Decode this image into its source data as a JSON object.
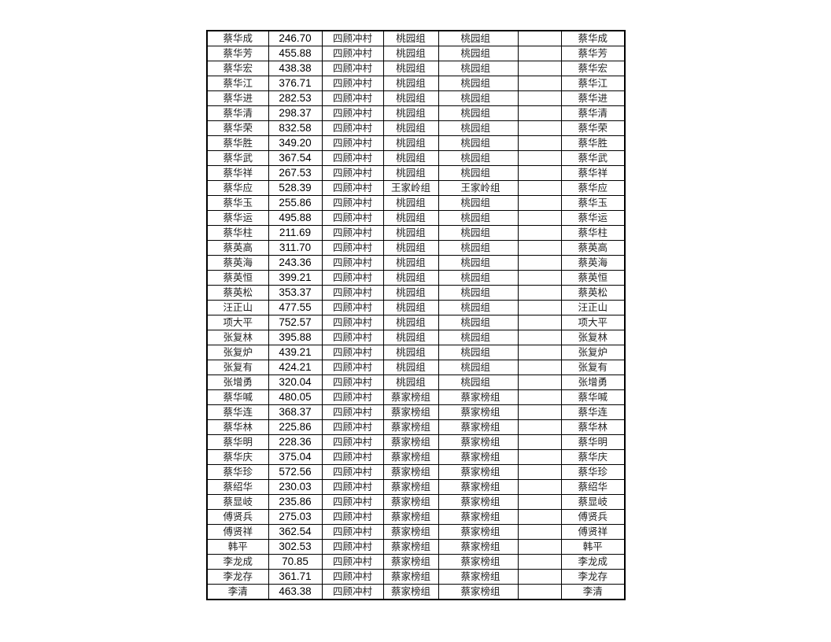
{
  "rows": [
    [
      "蔡华成",
      "246.70",
      "四顾冲村",
      "桃园组",
      "桃园组",
      "",
      "蔡华成"
    ],
    [
      "蔡华芳",
      "455.88",
      "四顾冲村",
      "桃园组",
      "桃园组",
      "",
      "蔡华芳"
    ],
    [
      "蔡华宏",
      "438.38",
      "四顾冲村",
      "桃园组",
      "桃园组",
      "",
      "蔡华宏"
    ],
    [
      "蔡华江",
      "376.71",
      "四顾冲村",
      "桃园组",
      "桃园组",
      "",
      "蔡华江"
    ],
    [
      "蔡华进",
      "282.53",
      "四顾冲村",
      "桃园组",
      "桃园组",
      "",
      "蔡华进"
    ],
    [
      "蔡华清",
      "298.37",
      "四顾冲村",
      "桃园组",
      "桃园组",
      "",
      "蔡华清"
    ],
    [
      "蔡华荣",
      "832.58",
      "四顾冲村",
      "桃园组",
      "桃园组",
      "",
      "蔡华荣"
    ],
    [
      "蔡华胜",
      "349.20",
      "四顾冲村",
      "桃园组",
      "桃园组",
      "",
      "蔡华胜"
    ],
    [
      "蔡华武",
      "367.54",
      "四顾冲村",
      "桃园组",
      "桃园组",
      "",
      "蔡华武"
    ],
    [
      "蔡华祥",
      "267.53",
      "四顾冲村",
      "桃园组",
      "桃园组",
      "",
      "蔡华祥"
    ],
    [
      "蔡华应",
      "528.39",
      "四顾冲村",
      "王家岭组",
      "王家岭组",
      "",
      "蔡华应"
    ],
    [
      "蔡华玉",
      "255.86",
      "四顾冲村",
      "桃园组",
      "桃园组",
      "",
      "蔡华玉"
    ],
    [
      "蔡华运",
      "495.88",
      "四顾冲村",
      "桃园组",
      "桃园组",
      "",
      "蔡华运"
    ],
    [
      "蔡华柱",
      "211.69",
      "四顾冲村",
      "桃园组",
      "桃园组",
      "",
      "蔡华柱"
    ],
    [
      "蔡英高",
      "311.70",
      "四顾冲村",
      "桃园组",
      "桃园组",
      "",
      "蔡英高"
    ],
    [
      "蔡英海",
      "243.36",
      "四顾冲村",
      "桃园组",
      "桃园组",
      "",
      "蔡英海"
    ],
    [
      "蔡英恒",
      "399.21",
      "四顾冲村",
      "桃园组",
      "桃园组",
      "",
      "蔡英恒"
    ],
    [
      "蔡英松",
      "353.37",
      "四顾冲村",
      "桃园组",
      "桃园组",
      "",
      "蔡英松"
    ],
    [
      "汪正山",
      "477.55",
      "四顾冲村",
      "桃园组",
      "桃园组",
      "",
      "汪正山"
    ],
    [
      "项大平",
      "752.57",
      "四顾冲村",
      "桃园组",
      "桃园组",
      "",
      "项大平"
    ],
    [
      "张复林",
      "395.88",
      "四顾冲村",
      "桃园组",
      "桃园组",
      "",
      "张复林"
    ],
    [
      "张复炉",
      "439.21",
      "四顾冲村",
      "桃园组",
      "桃园组",
      "",
      "张复炉"
    ],
    [
      "张复有",
      "424.21",
      "四顾冲村",
      "桃园组",
      "桃园组",
      "",
      "张复有"
    ],
    [
      "张增勇",
      "320.04",
      "四顾冲村",
      "桃园组",
      "桃园组",
      "",
      "张增勇"
    ],
    [
      "蔡华喊",
      "480.05",
      "四顾冲村",
      "蔡家榜组",
      "蔡家榜组",
      "",
      "蔡华喊"
    ],
    [
      "蔡华连",
      "368.37",
      "四顾冲村",
      "蔡家榜组",
      "蔡家榜组",
      "",
      "蔡华连"
    ],
    [
      "蔡华林",
      "225.86",
      "四顾冲村",
      "蔡家榜组",
      "蔡家榜组",
      "",
      "蔡华林"
    ],
    [
      "蔡华明",
      "228.36",
      "四顾冲村",
      "蔡家榜组",
      "蔡家榜组",
      "",
      "蔡华明"
    ],
    [
      "蔡华庆",
      "375.04",
      "四顾冲村",
      "蔡家榜组",
      "蔡家榜组",
      "",
      "蔡华庆"
    ],
    [
      "蔡华珍",
      "572.56",
      "四顾冲村",
      "蔡家榜组",
      "蔡家榜组",
      "",
      "蔡华珍"
    ],
    [
      "蔡绍华",
      "230.03",
      "四顾冲村",
      "蔡家榜组",
      "蔡家榜组",
      "",
      "蔡绍华"
    ],
    [
      "蔡显岐",
      "235.86",
      "四顾冲村",
      "蔡家榜组",
      "蔡家榜组",
      "",
      "蔡显岐"
    ],
    [
      "傅贤兵",
      "275.03",
      "四顾冲村",
      "蔡家榜组",
      "蔡家榜组",
      "",
      "傅贤兵"
    ],
    [
      "傅贤祥",
      "362.54",
      "四顾冲村",
      "蔡家榜组",
      "蔡家榜组",
      "",
      "傅贤祥"
    ],
    [
      "韩平",
      "302.53",
      "四顾冲村",
      "蔡家榜组",
      "蔡家榜组",
      "",
      "韩平"
    ],
    [
      "李龙成",
      "70.85",
      "四顾冲村",
      "蔡家榜组",
      "蔡家榜组",
      "",
      "李龙成"
    ],
    [
      "李龙存",
      "361.71",
      "四顾冲村",
      "蔡家榜组",
      "蔡家榜组",
      "",
      "李龙存"
    ],
    [
      "李清",
      "463.38",
      "四顾冲村",
      "蔡家榜组",
      "蔡家榜组",
      "",
      "李清"
    ]
  ]
}
